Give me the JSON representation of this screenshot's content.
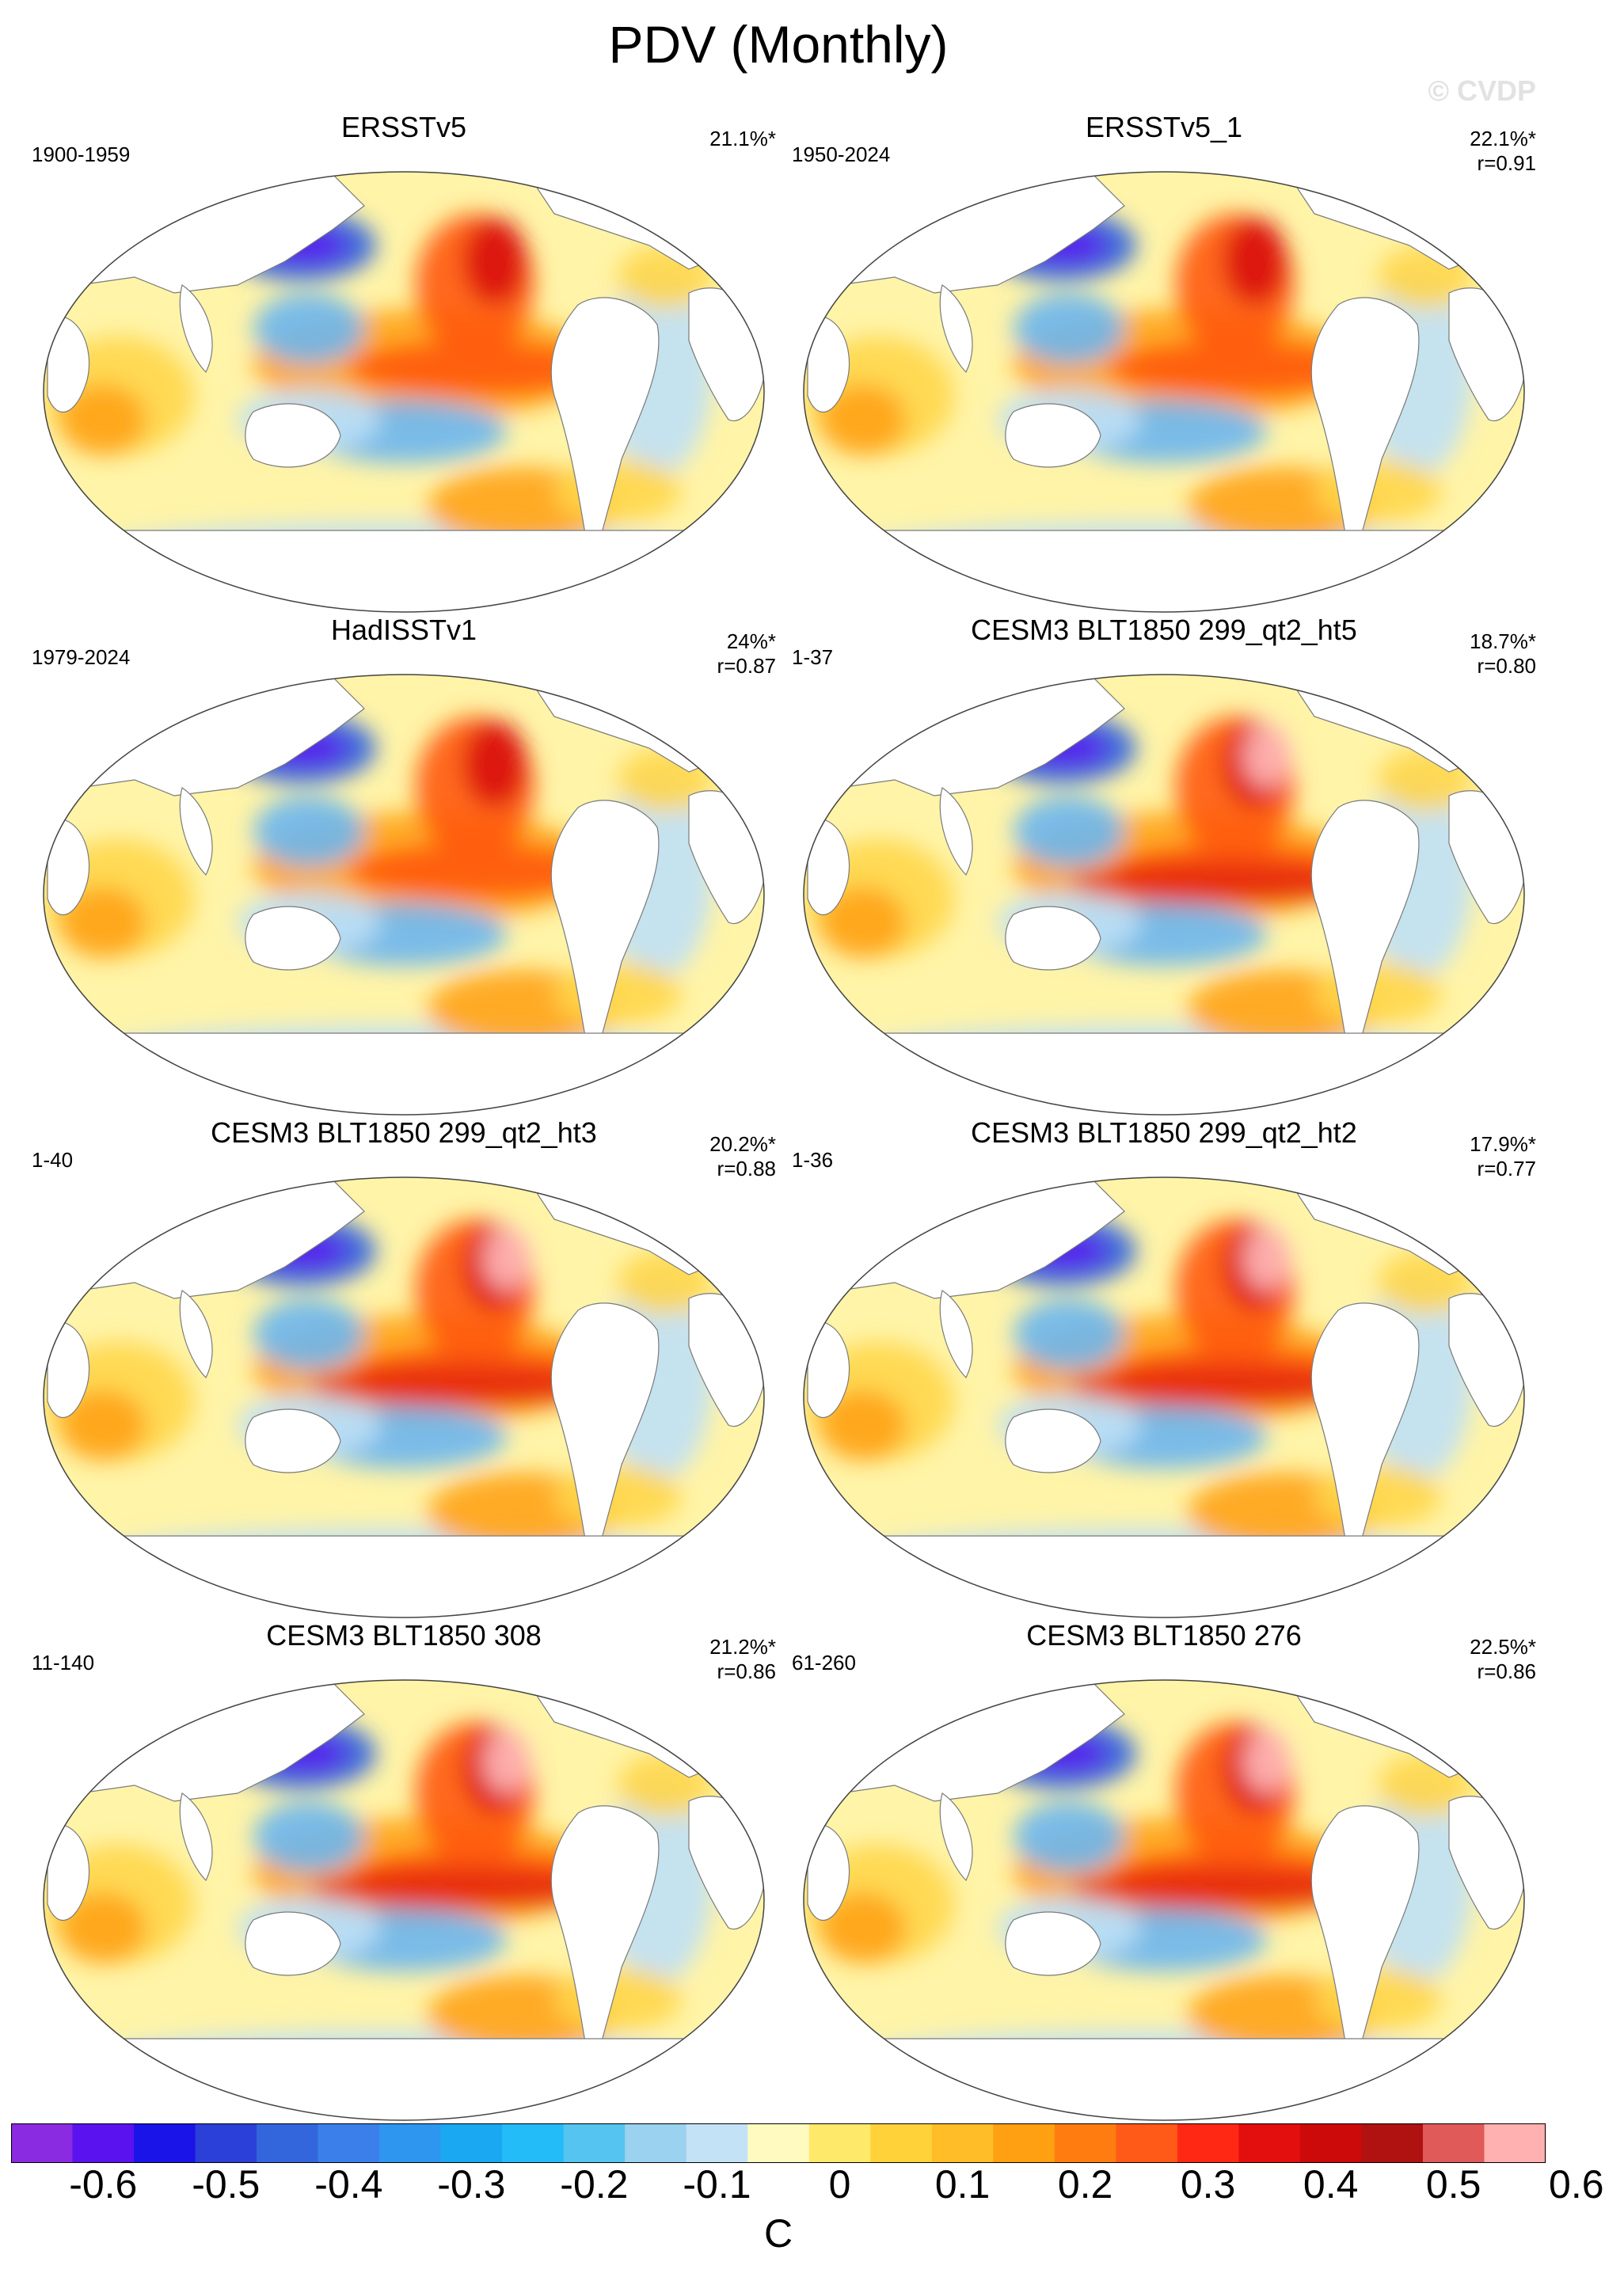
{
  "figure": {
    "title": "PDV (Monthly)",
    "watermark": "© CVDP"
  },
  "panels": [
    {
      "title": "ERSSTv5",
      "period": "1900-1959",
      "variance": "21.1%*",
      "r": ""
    },
    {
      "title": "ERSSTv5_1",
      "period": "1950-2024",
      "variance": "22.1%*",
      "r": "r=0.91"
    },
    {
      "title": "HadISSTv1",
      "period": "1979-2024",
      "variance": "24%*",
      "r": "r=0.87"
    },
    {
      "title": "CESM3 BLT1850 299_qt2_ht5",
      "period": "1-37",
      "variance": "18.7%*",
      "r": "r=0.80"
    },
    {
      "title": "CESM3 BLT1850 299_qt2_ht3",
      "period": "1-40",
      "variance": "20.2%*",
      "r": "r=0.88"
    },
    {
      "title": "CESM3 BLT1850 299_qt2_ht2",
      "period": "1-36",
      "variance": "17.9%*",
      "r": "r=0.77"
    },
    {
      "title": "CESM3 BLT1850 308",
      "period": "11-140",
      "variance": "21.2%*",
      "r": "r=0.86"
    },
    {
      "title": "CESM3 BLT1850 276",
      "period": "61-260",
      "variance": "22.5%*",
      "r": "r=0.86"
    }
  ],
  "colorbar": {
    "units": "C",
    "labels": [
      "-0.6",
      "-0.5",
      "-0.4",
      "-0.3",
      "-0.2",
      "-0.1",
      "0",
      "0.1",
      "0.2",
      "0.3",
      "0.4",
      "0.5",
      "0.6"
    ],
    "colors": [
      "#8a2be2",
      "#5a12ee",
      "#1a14e8",
      "#2a40d8",
      "#3366dd",
      "#3b80ea",
      "#2f96f0",
      "#1aa8f2",
      "#23bcf8",
      "#56c4f0",
      "#9bd2f0",
      "#c4e2f6",
      "#fffabf",
      "#ffe96a",
      "#ffd23a",
      "#ffbd28",
      "#ff9f12",
      "#ff7c10",
      "#ff5a18",
      "#ff2814",
      "#e30e0e",
      "#cc0a0a",
      "#b01212",
      "#e05a5a",
      "#ffb0b0"
    ]
  },
  "map_colors": {
    "ocean": "#fff4a8",
    "land": "#ffffff",
    "coast": "#7a7a7a",
    "weak_warm": "#ffd64a",
    "warm": "#ffa31a",
    "strong_warm": "#ff5a10",
    "very_warm": "#d90c0c",
    "extreme_warm": "#ffb4b4",
    "weak_cool": "#bfe0f6",
    "cool": "#6cb6f0",
    "strong_cool": "#2a5fe0",
    "very_cool": "#5a18ee"
  }
}
